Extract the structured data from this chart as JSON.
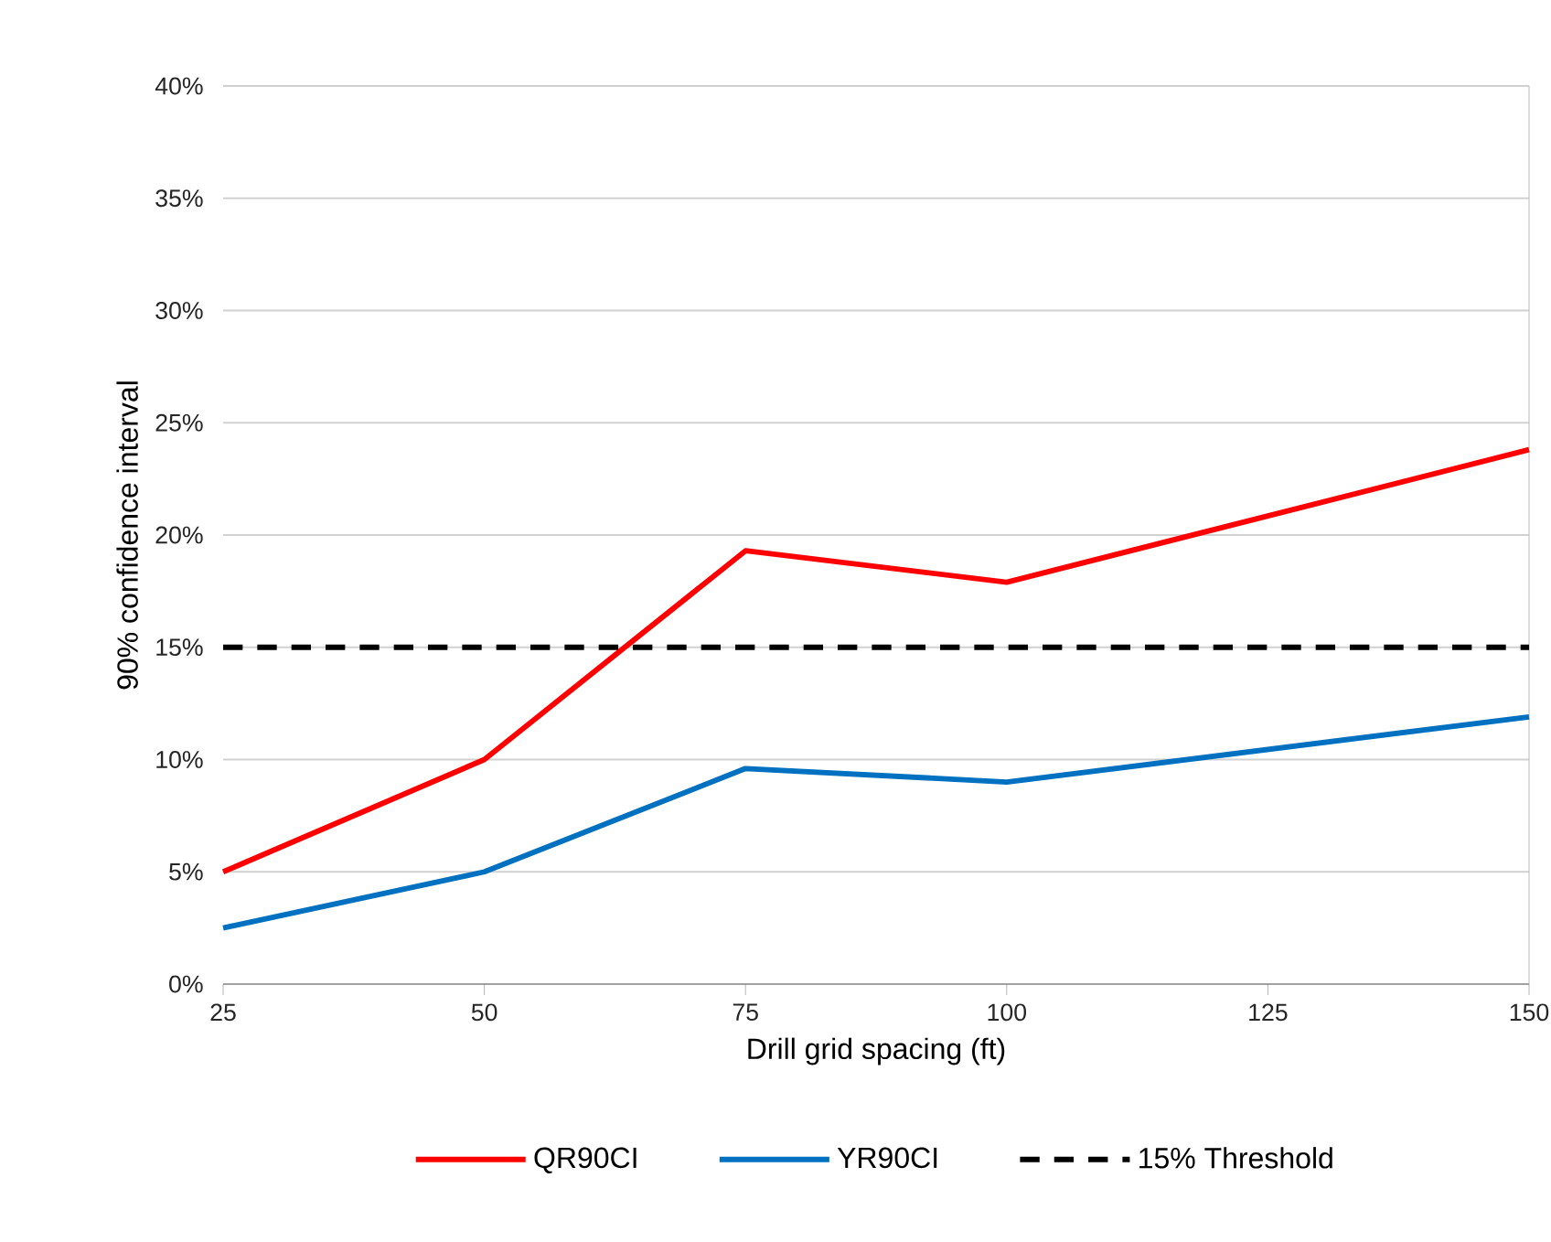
{
  "chart_data": {
    "type": "line",
    "xlabel": "Drill grid spacing (ft)",
    "ylabel": "90% confidence interval",
    "xlim": [
      25,
      150
    ],
    "xticks": [
      25,
      50,
      75,
      100,
      125,
      150
    ],
    "ylim": [
      0,
      40
    ],
    "yticks": [
      {
        "value": 0,
        "label": "0%"
      },
      {
        "value": 5,
        "label": "5%"
      },
      {
        "value": 10,
        "label": "10%"
      },
      {
        "value": 15,
        "label": "15%"
      },
      {
        "value": 20,
        "label": "20%"
      },
      {
        "value": 25,
        "label": "25%"
      },
      {
        "value": 30,
        "label": "30%"
      },
      {
        "value": 35,
        "label": "35%"
      },
      {
        "value": 40,
        "label": "40%"
      }
    ],
    "grid": "y",
    "legend": "bottom",
    "marker": "none",
    "series": [
      {
        "name": "QR90CI",
        "color": "#ff0000",
        "x": [
          25,
          50,
          75,
          100,
          150
        ],
        "values": [
          5,
          10,
          19.3,
          17.9,
          23.8
        ],
        "line_style": "solid"
      },
      {
        "name": "YR90CI",
        "color": "#0070c0",
        "x": [
          25,
          50,
          75,
          100,
          150
        ],
        "values": [
          2.5,
          5,
          9.6,
          9.0,
          11.9
        ],
        "line_style": "solid"
      },
      {
        "name": "15% Threshold",
        "color": "#000000",
        "x": [
          25,
          150
        ],
        "values": [
          15,
          15
        ],
        "line_style": "dashed"
      }
    ]
  }
}
